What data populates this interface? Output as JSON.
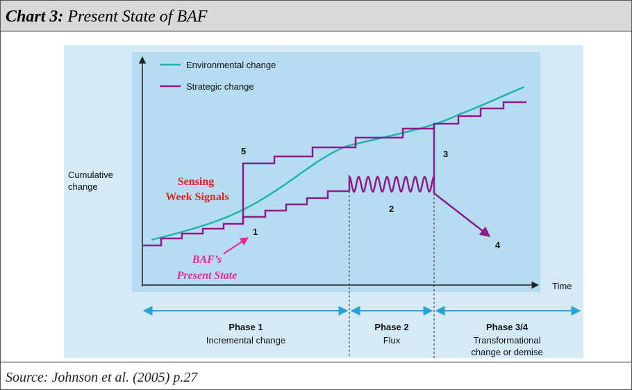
{
  "header": {
    "prefix": "Chart 3:",
    "title": "Present State of  BAF"
  },
  "legend": [
    "Environmental change",
    "Strategic change"
  ],
  "y_axis_label": [
    "Cumulative",
    "change"
  ],
  "x_axis_label": "Time",
  "markers": [
    "5",
    "1",
    "2",
    "3",
    "4"
  ],
  "annotations": {
    "sensing": [
      "Sensing",
      "Week Signals"
    ],
    "present_state": [
      "BAF’s",
      "Present State"
    ]
  },
  "phases": [
    {
      "name": "Phase 1",
      "desc": [
        "Incremental change"
      ]
    },
    {
      "name": "Phase 2",
      "desc": [
        "Flux"
      ]
    },
    {
      "name": "Phase 3/4",
      "desc": [
        "Transformational",
        "change or demise"
      ]
    }
  ],
  "source": "Source: Johnson et al. (2005) p.27"
}
